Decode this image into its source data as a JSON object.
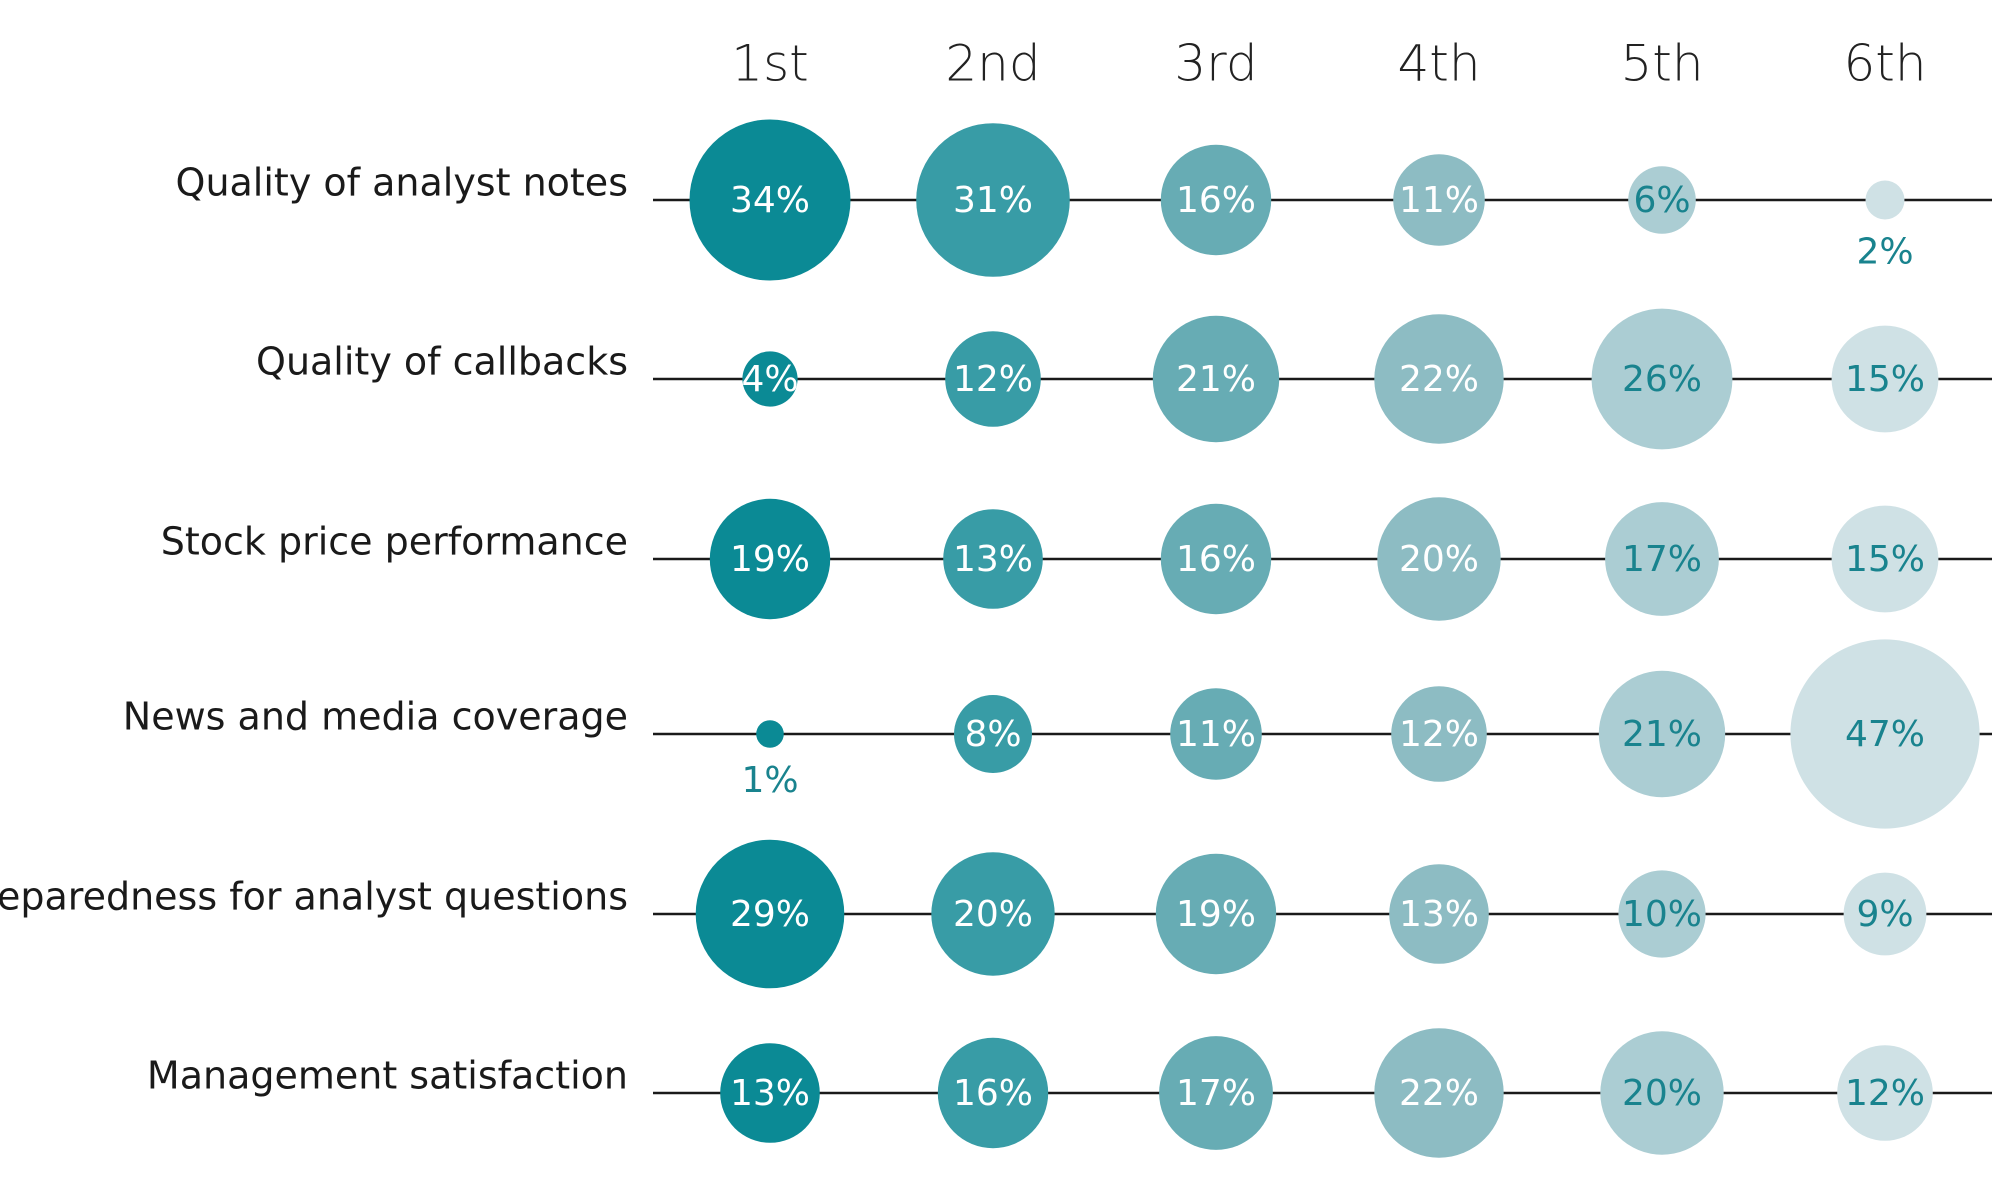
{
  "chart_data": {
    "type": "bubble-matrix",
    "title": "",
    "columns": [
      "1st",
      "2nd",
      "3rd",
      "4th",
      "5th",
      "6th"
    ],
    "rows": [
      {
        "label": "Quality of analyst notes",
        "values": [
          34,
          31,
          16,
          11,
          6,
          2
        ]
      },
      {
        "label": "Quality of callbacks",
        "values": [
          4,
          12,
          21,
          22,
          26,
          15
        ]
      },
      {
        "label": "Stock price performance",
        "values": [
          19,
          13,
          16,
          20,
          17,
          15
        ]
      },
      {
        "label": "News and media coverage",
        "values": [
          1,
          8,
          11,
          12,
          21,
          47
        ]
      },
      {
        "label": "Preparedness for analyst questions",
        "values": [
          29,
          20,
          19,
          13,
          10,
          9
        ]
      },
      {
        "label": "Management satisfaction",
        "values": [
          13,
          16,
          17,
          22,
          20,
          12
        ]
      }
    ],
    "value_suffix": "%"
  },
  "colors": {
    "column_fills": [
      "#0b8a95",
      "#389ca6",
      "#67acb4",
      "#8dbcc3",
      "#abcdd3",
      "#cfe1e5"
    ],
    "label_on_dark": "#ffffff",
    "label_on_light": "#19838e",
    "label_outside": "#19838e",
    "line": "#1a1a1a"
  }
}
